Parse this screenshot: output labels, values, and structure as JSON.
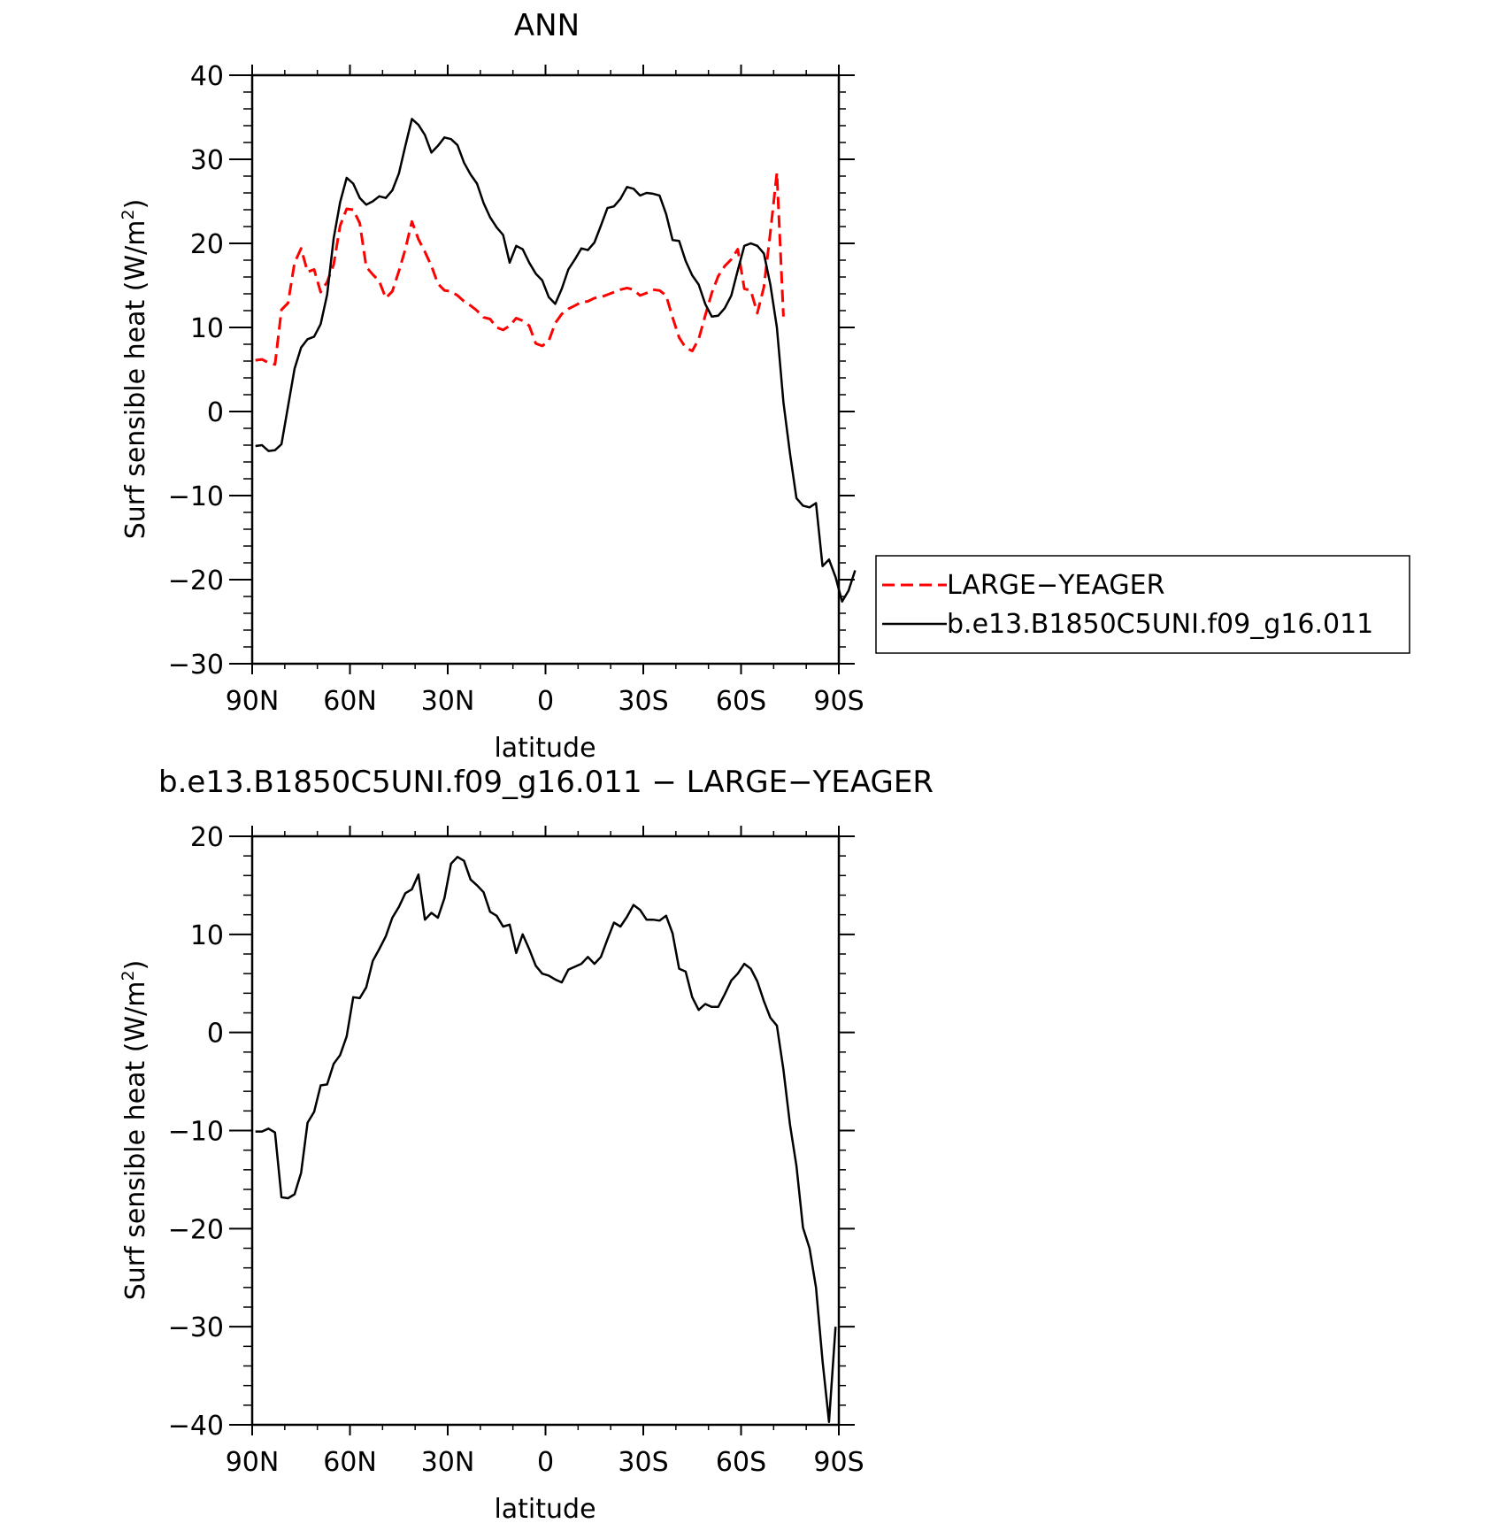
{
  "chart_data": [
    {
      "type": "line",
      "title": "ANN",
      "xlabel": "latitude",
      "ylabel_main": "Surf sensible heat (W/m",
      "ylabel_sup": "2",
      "ylabel_close": ")",
      "xlim": [
        -90,
        90
      ],
      "ylim": [
        -30,
        40
      ],
      "x_ticks": [
        -90,
        -60,
        -30,
        0,
        30,
        60,
        90
      ],
      "x_tick_labels": [
        "90N",
        "60N",
        "30N",
        "0",
        "30S",
        "60S",
        "90S"
      ],
      "y_ticks": [
        -30,
        -20,
        -10,
        0,
        10,
        20,
        30,
        40
      ],
      "y_tick_labels": [
        "−30",
        "−20",
        "−10",
        "0",
        "10",
        "20",
        "30",
        "40"
      ],
      "grid": false,
      "legend": "right",
      "series": [
        {
          "name": "LARGE−YEAGER",
          "color": "#ff0000",
          "dash": "dashed",
          "points": [
            [
              -89,
              6.1
            ],
            [
              -87,
              6.2
            ],
            [
              -85,
              5.8
            ],
            [
              -83,
              5.6
            ],
            [
              -81,
              12.1
            ],
            [
              -79,
              12.9
            ],
            [
              -77,
              17.7
            ],
            [
              -75,
              19.4
            ],
            [
              -73,
              16.6
            ],
            [
              -71,
              16.9
            ],
            [
              -69,
              14.2
            ],
            [
              -67,
              15.4
            ],
            [
              -65,
              17.5
            ],
            [
              -63,
              22.1
            ],
            [
              -61,
              24.1
            ],
            [
              -59,
              24.0
            ],
            [
              -57,
              22.4
            ],
            [
              -55,
              17.2
            ],
            [
              -53,
              16.3
            ],
            [
              -51,
              15.5
            ],
            [
              -49,
              13.5
            ],
            [
              -47,
              14.3
            ],
            [
              -45,
              16.7
            ],
            [
              -43,
              19.3
            ],
            [
              -41,
              22.6
            ],
            [
              -39,
              20.5
            ],
            [
              -37,
              19.0
            ],
            [
              -35,
              17.3
            ],
            [
              -33,
              15.2
            ],
            [
              -31,
              14.4
            ],
            [
              -29,
              14.3
            ],
            [
              -27,
              13.8
            ],
            [
              -25,
              13.1
            ],
            [
              -23,
              12.6
            ],
            [
              -21,
              12.0
            ],
            [
              -19,
              11.2
            ],
            [
              -17,
              11.0
            ],
            [
              -15,
              10.0
            ],
            [
              -13,
              9.7
            ],
            [
              -11,
              10.2
            ],
            [
              -9,
              11.1
            ],
            [
              -7,
              10.8
            ],
            [
              -5,
              10.2
            ],
            [
              -3,
              8.1
            ],
            [
              -1,
              7.8
            ],
            [
              1,
              8.4
            ],
            [
              3,
              10.5
            ],
            [
              5,
              11.6
            ],
            [
              7,
              12.2
            ],
            [
              9,
              12.6
            ],
            [
              11,
              13.0
            ],
            [
              13,
              13.1
            ],
            [
              15,
              13.5
            ],
            [
              17,
              13.6
            ],
            [
              19,
              13.9
            ],
            [
              21,
              14.2
            ],
            [
              23,
              14.5
            ],
            [
              25,
              14.7
            ],
            [
              27,
              14.5
            ],
            [
              29,
              13.8
            ],
            [
              31,
              14.1
            ],
            [
              33,
              14.5
            ],
            [
              35,
              14.4
            ],
            [
              37,
              13.8
            ],
            [
              39,
              11.2
            ],
            [
              41,
              8.8
            ],
            [
              43,
              7.6
            ],
            [
              45,
              7.2
            ],
            [
              47,
              8.6
            ],
            [
              49,
              11.4
            ],
            [
              51,
              14.1
            ],
            [
              53,
              16.1
            ],
            [
              55,
              17.3
            ],
            [
              57,
              18.1
            ],
            [
              59,
              19.3
            ],
            [
              61,
              14.6
            ],
            [
              63,
              14.4
            ],
            [
              65,
              11.7
            ],
            [
              67,
              14.8
            ],
            [
              69,
              21.3
            ],
            [
              71,
              28.4
            ],
            [
              73,
              11.3
            ]
          ]
        },
        {
          "name": "b.e13.B1850C5UNI.f09_g16.011",
          "color": "#000000",
          "dash": "solid",
          "points": [
            [
              -89,
              -4.1
            ],
            [
              -87,
              -4.0
            ],
            [
              -85,
              -4.7
            ],
            [
              -83,
              -4.6
            ],
            [
              -81,
              -3.9
            ],
            [
              -79,
              0.6
            ],
            [
              -77,
              5.1
            ],
            [
              -75,
              7.6
            ],
            [
              -73,
              8.6
            ],
            [
              -71,
              8.9
            ],
            [
              -69,
              10.4
            ],
            [
              -67,
              13.9
            ],
            [
              -65,
              20.6
            ],
            [
              -63,
              24.9
            ],
            [
              -61,
              27.8
            ],
            [
              -59,
              27.1
            ],
            [
              -57,
              25.4
            ],
            [
              -55,
              24.6
            ],
            [
              -53,
              25.0
            ],
            [
              -51,
              25.6
            ],
            [
              -49,
              25.4
            ],
            [
              -47,
              26.3
            ],
            [
              -45,
              28.3
            ],
            [
              -43,
              31.6
            ],
            [
              -41,
              34.8
            ],
            [
              -39,
              34.1
            ],
            [
              -37,
              32.9
            ],
            [
              -35,
              30.8
            ],
            [
              -33,
              31.6
            ],
            [
              -31,
              32.6
            ],
            [
              -29,
              32.4
            ],
            [
              -27,
              31.7
            ],
            [
              -25,
              29.6
            ],
            [
              -23,
              28.2
            ],
            [
              -21,
              27.1
            ],
            [
              -19,
              24.8
            ],
            [
              -17,
              23.1
            ],
            [
              -15,
              21.9
            ],
            [
              -13,
              21.0
            ],
            [
              -11,
              17.7
            ],
            [
              -9,
              19.7
            ],
            [
              -7,
              19.3
            ],
            [
              -5,
              17.7
            ],
            [
              -3,
              16.4
            ],
            [
              -1,
              15.6
            ],
            [
              1,
              13.6
            ],
            [
              3,
              12.8
            ],
            [
              5,
              14.6
            ],
            [
              7,
              16.9
            ],
            [
              9,
              18.1
            ],
            [
              11,
              19.4
            ],
            [
              13,
              19.2
            ],
            [
              15,
              20.1
            ],
            [
              17,
              22.1
            ],
            [
              19,
              24.2
            ],
            [
              21,
              24.4
            ],
            [
              23,
              25.3
            ],
            [
              25,
              26.7
            ],
            [
              27,
              26.5
            ],
            [
              29,
              25.7
            ],
            [
              31,
              26.0
            ],
            [
              33,
              25.9
            ],
            [
              35,
              25.7
            ],
            [
              37,
              23.5
            ],
            [
              39,
              20.4
            ],
            [
              41,
              20.3
            ],
            [
              43,
              17.9
            ],
            [
              45,
              16.2
            ],
            [
              47,
              15.1
            ],
            [
              49,
              12.8
            ],
            [
              51,
              11.3
            ],
            [
              53,
              11.4
            ],
            [
              55,
              12.3
            ],
            [
              57,
              13.8
            ],
            [
              59,
              16.8
            ],
            [
              61,
              19.7
            ],
            [
              63,
              20.0
            ],
            [
              65,
              19.7
            ],
            [
              67,
              18.8
            ],
            [
              69,
              15.1
            ],
            [
              71,
              10.0
            ],
            [
              73,
              1.1
            ],
            [
              75,
              -5.0
            ],
            [
              77,
              -10.3
            ],
            [
              79,
              -11.2
            ],
            [
              81,
              -11.4
            ],
            [
              83,
              -10.9
            ],
            [
              85,
              -18.4
            ],
            [
              87,
              -17.6
            ],
            [
              89,
              -19.7
            ],
            [
              91,
              -22.6
            ],
            [
              93,
              -21.3
            ],
            [
              95,
              -18.9
            ]
          ]
        }
      ]
    },
    {
      "type": "line",
      "title": "b.e13.B1850C5UNI.f09_g16.011 − LARGE−YEAGER",
      "xlabel": "latitude",
      "ylabel_main": "Surf sensible heat (W/m",
      "ylabel_sup": "2",
      "ylabel_close": ")",
      "xlim": [
        -90,
        90
      ],
      "ylim": [
        -40,
        20
      ],
      "x_ticks": [
        -90,
        -60,
        -30,
        0,
        30,
        60,
        90
      ],
      "x_tick_labels": [
        "90N",
        "60N",
        "30N",
        "0",
        "30S",
        "60S",
        "90S"
      ],
      "y_ticks": [
        -40,
        -30,
        -20,
        -10,
        0,
        10,
        20
      ],
      "y_tick_labels": [
        "−40",
        "−30",
        "−20",
        "−10",
        "0",
        "10",
        "20"
      ],
      "grid": false,
      "series": [
        {
          "color": "#000000",
          "dash": "solid",
          "points": [
            [
              -89,
              -10.1
            ],
            [
              -87,
              -10.1
            ],
            [
              -85,
              -9.8
            ],
            [
              -83,
              -10.2
            ],
            [
              -81,
              -16.8
            ],
            [
              -79,
              -16.9
            ],
            [
              -77,
              -16.5
            ],
            [
              -75,
              -14.3
            ],
            [
              -73,
              -9.2
            ],
            [
              -71,
              -8.1
            ],
            [
              -69,
              -5.4
            ],
            [
              -67,
              -5.3
            ],
            [
              -65,
              -3.2
            ],
            [
              -63,
              -2.3
            ],
            [
              -61,
              -0.4
            ],
            [
              -59,
              3.6
            ],
            [
              -57,
              3.5
            ],
            [
              -55,
              4.6
            ],
            [
              -53,
              7.3
            ],
            [
              -51,
              8.5
            ],
            [
              -49,
              9.8
            ],
            [
              -47,
              11.7
            ],
            [
              -45,
              12.8
            ],
            [
              -43,
              14.2
            ],
            [
              -41,
              14.6
            ],
            [
              -39,
              16.1
            ],
            [
              -37,
              11.5
            ],
            [
              -35,
              12.2
            ],
            [
              -33,
              11.7
            ],
            [
              -31,
              13.7
            ],
            [
              -29,
              17.2
            ],
            [
              -27,
              17.9
            ],
            [
              -25,
              17.5
            ],
            [
              -23,
              15.6
            ],
            [
              -21,
              15.0
            ],
            [
              -19,
              14.3
            ],
            [
              -17,
              12.3
            ],
            [
              -15,
              11.9
            ],
            [
              -13,
              10.8
            ],
            [
              -11,
              11.0
            ],
            [
              -9,
              8.1
            ],
            [
              -7,
              10.0
            ],
            [
              -5,
              8.5
            ],
            [
              -3,
              6.8
            ],
            [
              -1,
              6.0
            ],
            [
              1,
              5.8
            ],
            [
              3,
              5.4
            ],
            [
              5,
              5.1
            ],
            [
              7,
              6.4
            ],
            [
              9,
              6.7
            ],
            [
              11,
              7.0
            ],
            [
              13,
              7.7
            ],
            [
              15,
              7.0
            ],
            [
              17,
              7.7
            ],
            [
              19,
              9.5
            ],
            [
              21,
              11.2
            ],
            [
              23,
              10.8
            ],
            [
              25,
              11.8
            ],
            [
              27,
              13.0
            ],
            [
              29,
              12.5
            ],
            [
              31,
              11.5
            ],
            [
              33,
              11.5
            ],
            [
              35,
              11.4
            ],
            [
              37,
              11.9
            ],
            [
              39,
              10.1
            ],
            [
              41,
              6.5
            ],
            [
              43,
              6.2
            ],
            [
              45,
              3.6
            ],
            [
              47,
              2.3
            ],
            [
              49,
              2.9
            ],
            [
              51,
              2.6
            ],
            [
              53,
              2.6
            ],
            [
              55,
              3.9
            ],
            [
              57,
              5.3
            ],
            [
              59,
              6.0
            ],
            [
              61,
              7.0
            ],
            [
              63,
              6.5
            ],
            [
              65,
              5.2
            ],
            [
              67,
              3.2
            ],
            [
              69,
              1.5
            ],
            [
              71,
              0.7
            ],
            [
              73,
              -3.8
            ],
            [
              75,
              -9.4
            ],
            [
              77,
              -13.6
            ],
            [
              79,
              -19.9
            ],
            [
              81,
              -22.0
            ],
            [
              83,
              -26.0
            ],
            [
              85,
              -33.5
            ],
            [
              87,
              -39.7
            ],
            [
              89,
              -30.0
            ]
          ]
        }
      ]
    }
  ]
}
